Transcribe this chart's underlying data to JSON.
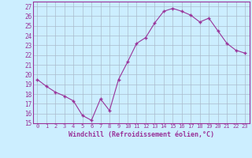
{
  "x": [
    0,
    1,
    2,
    3,
    4,
    5,
    6,
    7,
    8,
    9,
    10,
    11,
    12,
    13,
    14,
    15,
    16,
    17,
    18,
    19,
    20,
    21,
    22,
    23
  ],
  "y": [
    19.5,
    18.8,
    18.2,
    17.8,
    17.3,
    15.8,
    15.3,
    17.5,
    16.3,
    19.5,
    21.3,
    23.2,
    23.8,
    25.3,
    26.5,
    26.8,
    26.5,
    26.1,
    25.4,
    25.8,
    24.5,
    23.2,
    22.5,
    22.2
  ],
  "xlim": [
    -0.5,
    23.5
  ],
  "ylim": [
    15,
    27.5
  ],
  "yticks": [
    15,
    16,
    17,
    18,
    19,
    20,
    21,
    22,
    23,
    24,
    25,
    26,
    27
  ],
  "xlabel": "Windchill (Refroidissement éolien,°C)",
  "line_color": "#993399",
  "marker_color": "#993399",
  "bg_color": "#cceeff",
  "grid_color": "#aabbcc"
}
